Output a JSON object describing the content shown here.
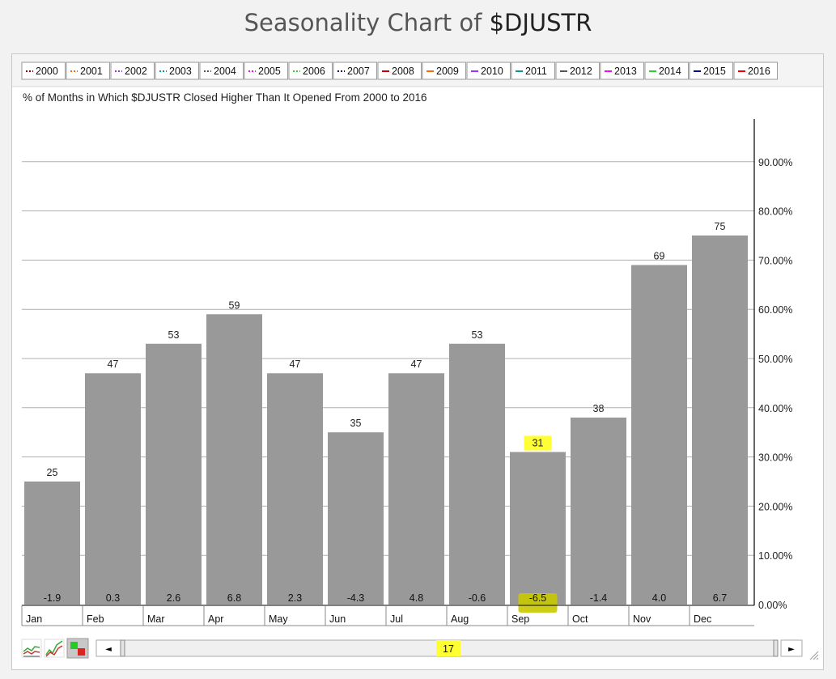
{
  "page": {
    "title_prefix": "Seasonality Chart of ",
    "title_symbol": "$DJUSTR"
  },
  "legend": {
    "items": [
      {
        "label": "2000",
        "color": "#8b0000",
        "style": "dotted"
      },
      {
        "label": "2001",
        "color": "#ff6600",
        "style": "dotted"
      },
      {
        "label": "2002",
        "color": "#9933cc",
        "style": "dotted"
      },
      {
        "label": "2003",
        "color": "#009999",
        "style": "dotted"
      },
      {
        "label": "2004",
        "color": "#555555",
        "style": "dotted"
      },
      {
        "label": "2005",
        "color": "#ff00ff",
        "style": "dotted"
      },
      {
        "label": "2006",
        "color": "#33cc33",
        "style": "dotted"
      },
      {
        "label": "2007",
        "color": "#000080",
        "style": "dotted"
      },
      {
        "label": "2008",
        "color": "#cc0000",
        "style": "solid"
      },
      {
        "label": "2009",
        "color": "#ff6600",
        "style": "solid"
      },
      {
        "label": "2010",
        "color": "#9933ff",
        "style": "solid"
      },
      {
        "label": "2011",
        "color": "#009999",
        "style": "solid"
      },
      {
        "label": "2012",
        "color": "#555555",
        "style": "solid"
      },
      {
        "label": "2013",
        "color": "#ff00ff",
        "style": "solid"
      },
      {
        "label": "2014",
        "color": "#33cc33",
        "style": "solid"
      },
      {
        "label": "2015",
        "color": "#0000aa",
        "style": "solid"
      },
      {
        "label": "2016",
        "color": "#ee0000",
        "style": "solid"
      }
    ]
  },
  "chart_data": {
    "type": "bar",
    "title": "% of Months in Which $DJUSTR Closed Higher Than It Opened From 2000 to 2016",
    "categories": [
      "Jan",
      "Feb",
      "Mar",
      "Apr",
      "May",
      "Jun",
      "Jul",
      "Aug",
      "Sep",
      "Oct",
      "Nov",
      "Dec"
    ],
    "values": [
      25,
      47,
      53,
      59,
      47,
      35,
      47,
      53,
      31,
      38,
      69,
      75
    ],
    "value_labels": [
      "25",
      "47",
      "53",
      "59",
      "47",
      "35",
      "47",
      "53",
      "31",
      "38",
      "69",
      "75"
    ],
    "avg_returns": [
      "-1.9",
      "0.3",
      "2.6",
      "6.8",
      "2.3",
      "-4.3",
      "4.8",
      "-0.6",
      "-6.5",
      "-1.4",
      "4.0",
      "6.7"
    ],
    "highlighted_category": "Sep",
    "highlight_color": "#ffff33",
    "bar_color": "#999999",
    "y_axis_side": "right",
    "ylim": [
      0,
      100
    ],
    "y_ticks": [
      0,
      10,
      20,
      30,
      40,
      50,
      60,
      70,
      80,
      90
    ],
    "y_tick_labels": [
      "0.00%",
      "10.00%",
      "20.00%",
      "30.00%",
      "40.00%",
      "50.00%",
      "60.00%",
      "70.00%",
      "80.00%",
      "90.00%"
    ],
    "grid": true
  },
  "scrollbar": {
    "value": "17",
    "left_arrow": "◄",
    "right_arrow": "►"
  },
  "icons": {
    "line_chart": "line-chart-icon",
    "area_chart": "area-chart-icon",
    "bar_chart": "bar-chart-icon"
  }
}
